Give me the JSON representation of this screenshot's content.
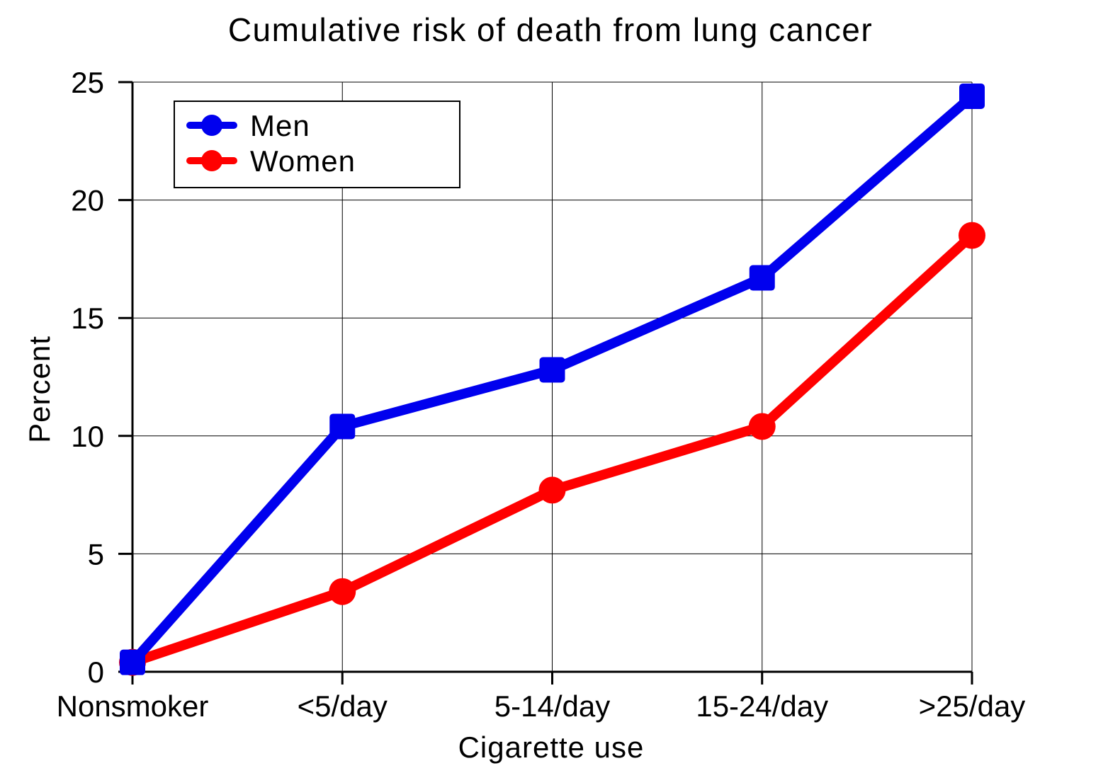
{
  "chart_data": {
    "type": "line",
    "title": "Cumulative risk of death from lung cancer",
    "xlabel": "Cigarette use",
    "ylabel": "Percent",
    "categories": [
      "Nonsmoker",
      "<5/day",
      "5-14/day",
      "15-24/day",
      ">25/day"
    ],
    "ylim": [
      0,
      25
    ],
    "yticks": [
      0,
      5,
      10,
      15,
      20,
      25
    ],
    "grid": true,
    "legend_position": "top-left",
    "series": [
      {
        "name": "Men",
        "color": "#0000ee",
        "marker": "square",
        "values": [
          0.4,
          10.4,
          12.8,
          16.7,
          24.4
        ]
      },
      {
        "name": "Women",
        "color": "#ff0000",
        "marker": "circle",
        "values": [
          0.4,
          3.4,
          7.7,
          10.4,
          18.5
        ]
      }
    ]
  }
}
